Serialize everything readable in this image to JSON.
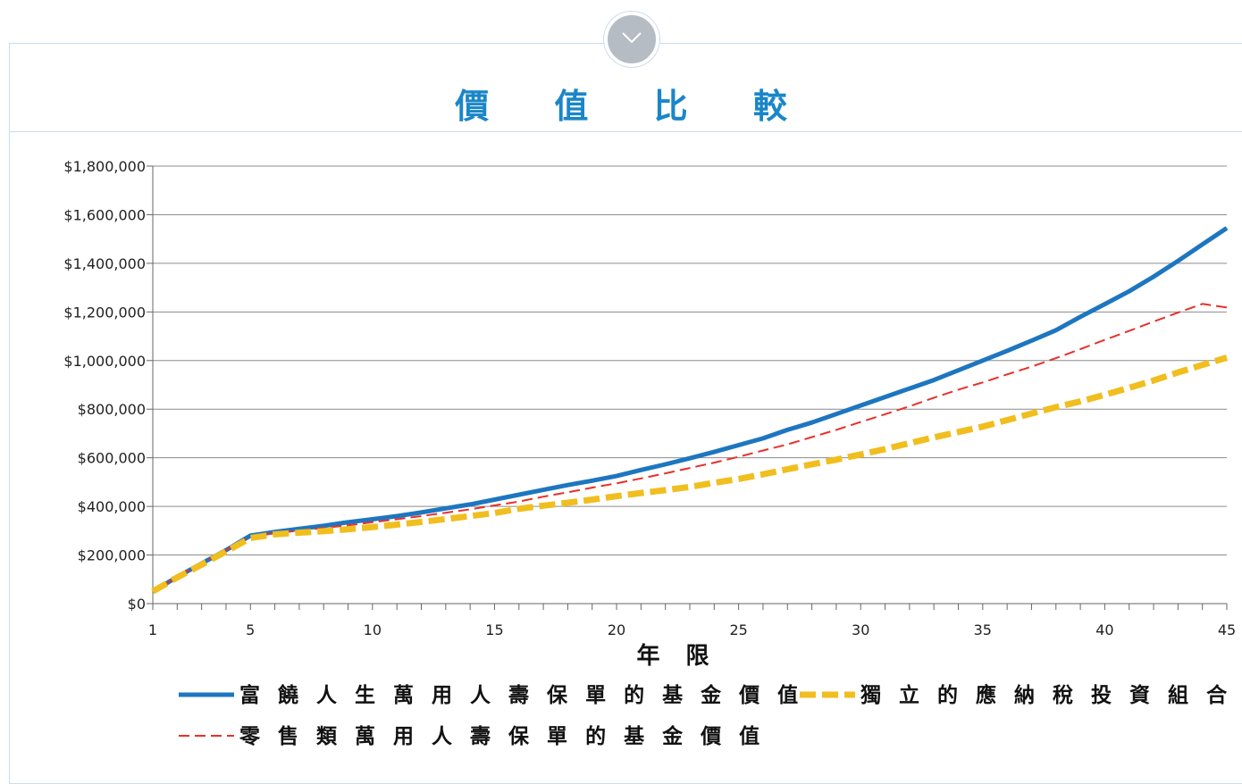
{
  "page": {
    "title": "價 值 比 較",
    "accent_color": "#1a86c8",
    "toggle_icon": "chevron-down-icon"
  },
  "chart_data": {
    "type": "line",
    "title": "價 值 比 較",
    "xlabel": "年 限",
    "ylabel": "",
    "xlim": [
      1,
      45
    ],
    "ylim": [
      0,
      1800000
    ],
    "x_ticks": [
      1,
      5,
      10,
      15,
      20,
      25,
      30,
      35,
      40,
      45
    ],
    "x_tick_labels": [
      "1",
      "5",
      "10",
      "15",
      "20",
      "25",
      "30",
      "35",
      "40",
      "45"
    ],
    "y_ticks": [
      0,
      200000,
      400000,
      600000,
      800000,
      1000000,
      1200000,
      1400000,
      1600000,
      1800000
    ],
    "y_tick_labels": [
      "$0",
      "$200,000",
      "$400,000",
      "$600,000",
      "$800,000",
      "$1,000,000",
      "$1,200,000",
      "$1,400,000",
      "$1,600,000",
      "$1,800,000"
    ],
    "grid": true,
    "legend_position": "bottom",
    "x": [
      1,
      2,
      3,
      4,
      5,
      6,
      7,
      8,
      9,
      10,
      11,
      12,
      13,
      14,
      15,
      16,
      17,
      18,
      19,
      20,
      21,
      22,
      23,
      24,
      25,
      26,
      27,
      28,
      29,
      30,
      31,
      32,
      33,
      34,
      35,
      36,
      37,
      38,
      39,
      40,
      41,
      42,
      43,
      44,
      45
    ],
    "series": [
      {
        "name": "富 饒 人 生 萬 用 人 壽 保 單 的 基 金 價 值",
        "color": "#1d76c0",
        "style": "solid",
        "values": [
          50000,
          110000,
          165000,
          220000,
          280000,
          295000,
          308000,
          320000,
          335000,
          347000,
          360000,
          375000,
          392000,
          408000,
          428000,
          448000,
          468000,
          488000,
          506000,
          525000,
          550000,
          573000,
          598000,
          624000,
          652000,
          680000,
          715000,
          745000,
          780000,
          815000,
          850000,
          885000,
          920000,
          960000,
          1000000,
          1040000,
          1082000,
          1125000,
          1180000,
          1232000,
          1285000,
          1345000,
          1410000,
          1478000,
          1545000
        ]
      },
      {
        "name": "獨 立 的 應 納 稅 投 資 組 合",
        "color": "#f0be1e",
        "style": "dashed-thick",
        "values": [
          50000,
          108000,
          160000,
          215000,
          270000,
          285000,
          292000,
          298000,
          306000,
          315000,
          325000,
          336000,
          348000,
          360000,
          373000,
          390000,
          403000,
          415000,
          428000,
          442000,
          455000,
          467000,
          480000,
          497000,
          513000,
          532000,
          553000,
          573000,
          592000,
          614000,
          636000,
          660000,
          684000,
          706000,
          728000,
          755000,
          782000,
          808000,
          832000,
          859000,
          888000,
          918000,
          951000,
          982000,
          1012000
        ]
      },
      {
        "name": "零 售 類 萬 用 人 壽 保 單 的 基 金 價 值",
        "color": "#e8302a",
        "style": "dashed-thin",
        "values": [
          50000,
          110000,
          165000,
          220000,
          277000,
          290000,
          300000,
          311000,
          322000,
          335000,
          347000,
          360000,
          374000,
          388000,
          404000,
          420000,
          440000,
          458000,
          477000,
          495000,
          515000,
          536000,
          558000,
          580000,
          604000,
          630000,
          655000,
          685000,
          715000,
          747000,
          779000,
          812000,
          847000,
          880000,
          910000,
          943000,
          975000,
          1010000,
          1047000,
          1085000,
          1122000,
          1160000,
          1197000,
          1233000,
          1218000
        ]
      }
    ]
  }
}
